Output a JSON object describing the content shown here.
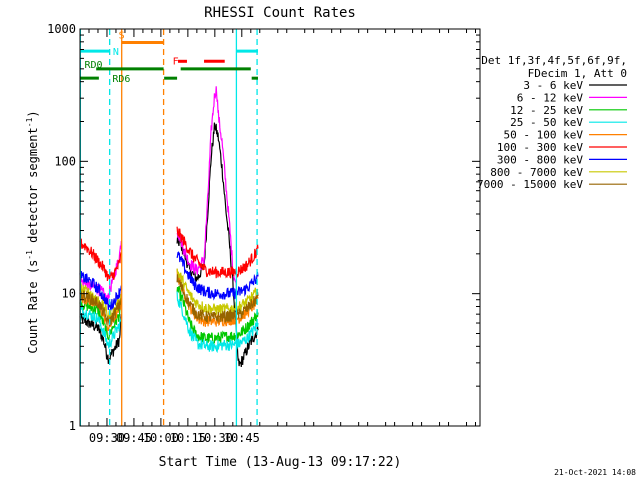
{
  "chart_data": {
    "type": "line",
    "title": "RHESSI Count Rates",
    "xlabel": "Start Time (13-Aug-13 09:17:22)",
    "ylabel_main": "Count Rate (s",
    "ylabel_sup1": "-1",
    "ylabel_mid": " detector segment",
    "ylabel_sup2": "-1",
    "ylabel_end": ")",
    "yscale": "log",
    "ylim": [
      1,
      1000
    ],
    "xlim_minutes": [
      555.0,
      777.5
    ],
    "yticks": [
      {
        "value": 1,
        "label": "1"
      },
      {
        "value": 10,
        "label": "10"
      },
      {
        "value": 100,
        "label": "100"
      },
      {
        "value": 1000,
        "label": "1000"
      }
    ],
    "xticks": [
      {
        "minute": 570,
        "label": "09:30"
      },
      {
        "minute": 585,
        "label": "09:45"
      },
      {
        "minute": 600,
        "label": "10:00"
      },
      {
        "minute": 615,
        "label": "10:15"
      },
      {
        "minute": 630,
        "label": "10:30"
      },
      {
        "minute": 645,
        "label": "10:45"
      }
    ],
    "legend": {
      "position": "right",
      "header_line1": "Det 1f,3f,4f,5f,6f,9f,",
      "header_line2": "FDecim 1, Att 0",
      "entries": [
        {
          "label": "3 - 6 keV",
          "color": "#000000"
        },
        {
          "label": "6 - 12 keV",
          "color": "#ff00ff"
        },
        {
          "label": "12 - 25 keV",
          "color": "#00c800"
        },
        {
          "label": "25 - 50 keV",
          "color": "#00e8e8"
        },
        {
          "label": "50 - 100 keV",
          "color": "#ff8000"
        },
        {
          "label": "100 - 300 keV",
          "color": "#ff0000"
        },
        {
          "label": "300 - 800 keV",
          "color": "#0000ff"
        },
        {
          "label": "800 - 7000 keV",
          "color": "#c8c800"
        },
        {
          "label": "7000 - 15000 keV",
          "color": "#966400"
        }
      ]
    },
    "series": [
      {
        "name": "3 - 6 keV",
        "color": "#000000",
        "segments": [
          [
            [
              555,
              6.5
            ],
            [
              560,
              6.0
            ],
            [
              565,
              5.5
            ],
            [
              568,
              4.5
            ],
            [
              570,
              3.5
            ],
            [
              571,
              3.2
            ],
            [
              573,
              3.6
            ],
            [
              575,
              4.0
            ],
            [
              577,
              4.5
            ],
            [
              578,
              7
            ]
          ],
          [
            [
              609,
              25
            ],
            [
              611,
              24
            ],
            [
              613,
              20
            ],
            [
              616,
              15
            ],
            [
              620,
              13
            ],
            [
              624,
              16
            ],
            [
              626,
              40
            ],
            [
              628,
              110
            ],
            [
              630,
              190
            ],
            [
              632,
              150
            ],
            [
              634,
              90
            ],
            [
              636,
              45
            ],
            [
              638,
              25
            ],
            [
              640,
              12
            ],
            [
              642,
              5
            ],
            [
              643,
              3.0
            ],
            [
              644,
              2.9
            ],
            [
              646,
              3.3
            ],
            [
              648,
              3.8
            ],
            [
              650,
              4.3
            ],
            [
              652,
              4.8
            ],
            [
              654,
              5.3
            ]
          ]
        ]
      },
      {
        "name": "6 - 12 keV",
        "color": "#ff00ff",
        "segments": [
          [
            [
              555,
              12.5
            ],
            [
              560,
              11.5
            ],
            [
              565,
              11
            ],
            [
              568,
              10
            ],
            [
              570,
              9
            ],
            [
              572,
              11
            ],
            [
              574,
              14
            ],
            [
              576,
              17
            ],
            [
              577,
              20
            ],
            [
              578,
              25
            ]
          ],
          [
            [
              609,
              30
            ],
            [
              611,
              26
            ],
            [
              613,
              21
            ],
            [
              616,
              17
            ],
            [
              620,
              15
            ],
            [
              624,
              18
            ],
            [
              626,
              50
            ],
            [
              628,
              170
            ],
            [
              630,
              330
            ],
            [
              631,
              350
            ],
            [
              632,
              220
            ],
            [
              634,
              140
            ],
            [
              636,
              70
            ],
            [
              638,
              35
            ],
            [
              640,
              16
            ],
            [
              642,
              11
            ]
          ]
        ]
      },
      {
        "name": "12 - 25 keV",
        "color": "#00c800",
        "segments": [
          [
            [
              555,
              8.5
            ],
            [
              560,
              8.0
            ],
            [
              565,
              7.5
            ],
            [
              568,
              6.0
            ],
            [
              570,
              5.0
            ],
            [
              571,
              4.8
            ],
            [
              573,
              5.5
            ],
            [
              575,
              6.2
            ],
            [
              577,
              7
            ],
            [
              578,
              8
            ]
          ],
          [
            [
              609,
              11
            ],
            [
              612,
              9
            ],
            [
              616,
              6.0
            ],
            [
              620,
              4.8
            ],
            [
              625,
              4.6
            ],
            [
              630,
              4.6
            ],
            [
              635,
              4.7
            ],
            [
              640,
              4.8
            ],
            [
              644,
              5.0
            ],
            [
              648,
              5.6
            ],
            [
              652,
              6.5
            ],
            [
              654,
              7.2
            ]
          ]
        ]
      },
      {
        "name": "25 - 50 keV",
        "color": "#00e8e8",
        "segments": [
          [
            [
              555,
              7.5
            ],
            [
              560,
              7.0
            ],
            [
              565,
              6.5
            ],
            [
              568,
              5.2
            ],
            [
              570,
              4.3
            ],
            [
              571,
              4.1
            ],
            [
              573,
              4.6
            ],
            [
              575,
              5.2
            ],
            [
              577,
              5.8
            ],
            [
              578,
              6.5
            ]
          ],
          [
            [
              609,
              9.5
            ],
            [
              612,
              7.5
            ],
            [
              616,
              5.2
            ],
            [
              620,
              4.2
            ],
            [
              625,
              4.0
            ],
            [
              630,
              4.0
            ],
            [
              635,
              4.1
            ],
            [
              640,
              4.1
            ],
            [
              644,
              4.2
            ],
            [
              648,
              4.6
            ],
            [
              652,
              5.4
            ],
            [
              654,
              6.0
            ]
          ]
        ]
      },
      {
        "name": "50 - 100 keV",
        "color": "#ff8000",
        "segments": [
          [
            [
              555,
              9.5
            ],
            [
              560,
              9.0
            ],
            [
              565,
              8.3
            ],
            [
              568,
              7.0
            ],
            [
              570,
              5.8
            ],
            [
              571,
              5.5
            ],
            [
              573,
              6.2
            ],
            [
              575,
              7.0
            ],
            [
              577,
              7.8
            ],
            [
              578,
              9
            ]
          ],
          [
            [
              609,
              14
            ],
            [
              612,
              11
            ],
            [
              616,
              8.0
            ],
            [
              620,
              6.6
            ],
            [
              625,
              6.2
            ],
            [
              630,
              6.2
            ],
            [
              635,
              6.3
            ],
            [
              640,
              6.4
            ],
            [
              644,
              6.6
            ],
            [
              648,
              7.3
            ],
            [
              652,
              8.3
            ],
            [
              654,
              9.2
            ]
          ]
        ]
      },
      {
        "name": "100 - 300 keV",
        "color": "#ff0000",
        "segments": [
          [
            [
              555,
              24
            ],
            [
              558,
              23
            ],
            [
              562,
              20
            ],
            [
              566,
              17
            ],
            [
              569,
              15
            ],
            [
              571,
              13
            ],
            [
              573,
              13.5
            ],
            [
              575,
              15
            ],
            [
              577,
              17
            ],
            [
              578,
              20
            ]
          ],
          [
            [
              609,
              30
            ],
            [
              612,
              26
            ],
            [
              615,
              22
            ],
            [
              618,
              19
            ],
            [
              621,
              17
            ],
            [
              625,
              15
            ],
            [
              630,
              14.5
            ],
            [
              635,
              14.5
            ],
            [
              640,
              14.5
            ],
            [
              644,
              15
            ],
            [
              648,
              16.5
            ],
            [
              652,
              19.5
            ],
            [
              654,
              22
            ]
          ]
        ]
      },
      {
        "name": "300 - 800 keV",
        "color": "#0000ff",
        "segments": [
          [
            [
              555,
              13.5
            ],
            [
              558,
              13
            ],
            [
              562,
              12
            ],
            [
              566,
              10.5
            ],
            [
              569,
              9.0
            ],
            [
              571,
              8.0
            ],
            [
              573,
              8.3
            ],
            [
              575,
              9.3
            ],
            [
              577,
              10.3
            ],
            [
              578,
              11.5
            ]
          ],
          [
            [
              609,
              20
            ],
            [
              612,
              17
            ],
            [
              615,
              14
            ],
            [
              618,
              12
            ],
            [
              621,
              11
            ],
            [
              625,
              10.3
            ],
            [
              630,
              10
            ],
            [
              635,
              10
            ],
            [
              640,
              10
            ],
            [
              644,
              10.3
            ],
            [
              648,
              11
            ],
            [
              652,
              12.5
            ],
            [
              654,
              13.5
            ]
          ]
        ]
      },
      {
        "name": "800 - 7000 keV",
        "color": "#c8c800",
        "segments": [
          [
            [
              555,
              11
            ],
            [
              558,
              10.5
            ],
            [
              562,
              9.8
            ],
            [
              566,
              8.6
            ],
            [
              569,
              7.6
            ],
            [
              571,
              6.8
            ],
            [
              573,
              7.0
            ],
            [
              575,
              7.8
            ],
            [
              577,
              8.6
            ],
            [
              578,
              9.8
            ]
          ],
          [
            [
              609,
              15
            ],
            [
              612,
              12.5
            ],
            [
              615,
              10.3
            ],
            [
              618,
              9.0
            ],
            [
              621,
              8.3
            ],
            [
              625,
              7.8
            ],
            [
              630,
              7.6
            ],
            [
              635,
              7.6
            ],
            [
              640,
              7.7
            ],
            [
              644,
              8.0
            ],
            [
              648,
              8.7
            ],
            [
              652,
              9.8
            ],
            [
              654,
              10.8
            ]
          ]
        ]
      },
      {
        "name": "7000 - 15000 keV",
        "color": "#966400",
        "segments": [
          [
            [
              555,
              10
            ],
            [
              560,
              9.3
            ],
            [
              565,
              8.5
            ],
            [
              568,
              7.3
            ],
            [
              570,
              6.3
            ],
            [
              571,
              6.0
            ],
            [
              573,
              6.6
            ],
            [
              575,
              7.4
            ],
            [
              577,
              8.2
            ],
            [
              578,
              9.3
            ]
          ],
          [
            [
              609,
              13
            ],
            [
              612,
              10.8
            ],
            [
              616,
              8.3
            ],
            [
              620,
              7.0
            ],
            [
              625,
              6.7
            ],
            [
              630,
              6.6
            ],
            [
              635,
              6.7
            ],
            [
              640,
              6.8
            ],
            [
              644,
              7.0
            ],
            [
              648,
              7.7
            ],
            [
              652,
              8.7
            ],
            [
              654,
              9.6
            ]
          ]
        ]
      }
    ],
    "status_bars": [
      {
        "label": "N",
        "color": "#00e8e8",
        "y_value": 680,
        "intervals": [
          [
            555,
            571.5
          ],
          [
            642,
            654
          ]
        ]
      },
      {
        "label": "S",
        "color": "#ff8000",
        "y_value": 790,
        "intervals": [
          [
            578.2,
            601.5
          ]
        ]
      },
      {
        "label": "F",
        "color": "#ff0000",
        "y_value": 570,
        "intervals": [
          [
            609.5,
            614.5
          ],
          [
            624,
            635.5
          ]
        ]
      },
      {
        "label": "RD0",
        "color": "#008000",
        "y_value": 500,
        "intervals": [
          [
            564,
            601.5
          ],
          [
            611,
            650
          ]
        ]
      },
      {
        "label": "RD6",
        "color": "#008000",
        "y_value": 425,
        "intervals": [
          [
            555,
            565.5
          ],
          [
            601.8,
            609
          ],
          [
            650.5,
            654
          ]
        ]
      }
    ],
    "vertical_markers": [
      {
        "minute": 555.2,
        "color": "#00e8e8",
        "style": "solid"
      },
      {
        "minute": 571.5,
        "color": "#00e8e8",
        "style": "dashed"
      },
      {
        "minute": 578.2,
        "color": "#ff8000",
        "style": "solid"
      },
      {
        "minute": 601.5,
        "color": "#ff8000",
        "style": "dashed"
      },
      {
        "minute": 642,
        "color": "#00e8e8",
        "style": "solid"
      },
      {
        "minute": 653.5,
        "color": "#00e8e8",
        "style": "dashed"
      }
    ]
  },
  "footer_timestamp": "21-Oct-2021 14:08"
}
